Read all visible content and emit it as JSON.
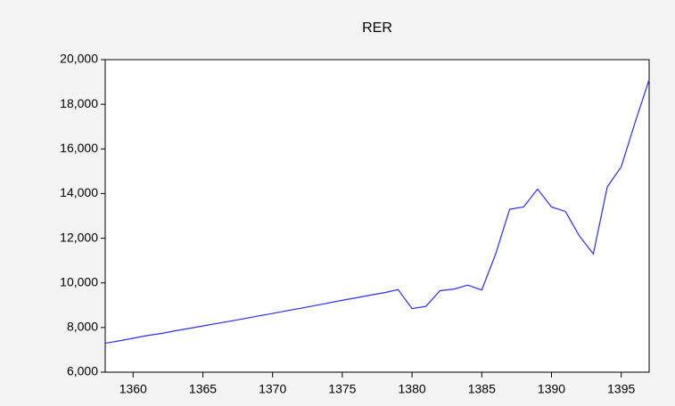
{
  "chart_data": {
    "type": "line",
    "title": "RER",
    "x": [
      1358,
      1359,
      1360,
      1361,
      1362,
      1363,
      1364,
      1365,
      1366,
      1367,
      1368,
      1369,
      1370,
      1371,
      1372,
      1373,
      1374,
      1375,
      1376,
      1377,
      1378,
      1379,
      1380,
      1381,
      1382,
      1383,
      1384,
      1385,
      1386,
      1387,
      1388,
      1389,
      1390,
      1391,
      1392,
      1393,
      1394,
      1395,
      1396,
      1397
    ],
    "series": [
      {
        "name": "RER",
        "color": "#2b2bff",
        "values": [
          7300,
          7400,
          7520,
          7640,
          7730,
          7850,
          7960,
          8070,
          8180,
          8290,
          8400,
          8520,
          8630,
          8750,
          8860,
          8980,
          9100,
          9220,
          9330,
          9450,
          9560,
          9700,
          8850,
          8950,
          9650,
          9720,
          9900,
          9680,
          11300,
          13300,
          13400,
          14200,
          13400,
          13200,
          12100,
          11300,
          14300,
          15200,
          17200,
          19100
        ]
      }
    ],
    "xlim": [
      1358,
      1397
    ],
    "xticks": [
      1360,
      1365,
      1370,
      1375,
      1380,
      1385,
      1390,
      1395
    ],
    "ylim": [
      6000,
      20000
    ],
    "yticks": [
      {
        "value": 6000,
        "label": "6,000"
      },
      {
        "value": 8000,
        "label": "8,000"
      },
      {
        "value": 10000,
        "label": "10,000"
      },
      {
        "value": 12000,
        "label": "12,000"
      },
      {
        "value": 14000,
        "label": "14,000"
      },
      {
        "value": 16000,
        "label": "16,000"
      },
      {
        "value": 18000,
        "label": "18,000"
      },
      {
        "value": 20000,
        "label": "20,000"
      }
    ]
  }
}
